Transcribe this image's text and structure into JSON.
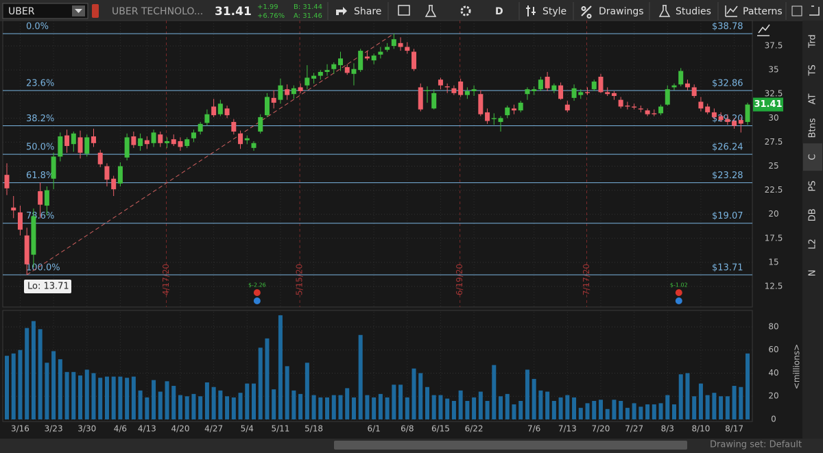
{
  "toolbar": {
    "symbol": "UBER",
    "company": "UBER TECHNOLO...",
    "last": "31.41",
    "change": "+1.99",
    "change_pct": "+6.76%",
    "bid": "B: 31.44",
    "ask": "A: 31.46",
    "share": "Share",
    "period": "D",
    "style": "Style",
    "drawings": "Drawings",
    "studies": "Studies",
    "patterns": "Patterns"
  },
  "sidebar": [
    "Trd",
    "TS",
    "AT",
    "Btns",
    "C",
    "PS",
    "DB",
    "L2",
    "N"
  ],
  "footer": {
    "drawing_set": "Drawing set: Default"
  },
  "chart_data": {
    "type": "candlestick",
    "categories": [
      null,
      null,
      "3/16",
      null,
      null,
      null,
      null,
      "3/23",
      null,
      null,
      null,
      null,
      "3/30",
      null,
      null,
      null,
      null,
      "4/6",
      null,
      null,
      null,
      "4/13",
      null,
      null,
      null,
      null,
      "4/20",
      null,
      null,
      null,
      null,
      "4/27",
      null,
      null,
      null,
      null,
      "5/4",
      null,
      null,
      null,
      null,
      "5/11",
      null,
      null,
      null,
      null,
      "5/18",
      null,
      null,
      null,
      null,
      null,
      null,
      null,
      null,
      "6/1",
      null,
      null,
      null,
      null,
      "6/8",
      null,
      null,
      null,
      null,
      "6/15",
      null,
      null,
      null,
      null,
      "6/22",
      null,
      null,
      null,
      null,
      null,
      null,
      null,
      null,
      "7/6",
      null,
      null,
      null,
      null,
      "7/13",
      null,
      null,
      null,
      null,
      "7/20",
      null,
      null,
      null,
      null,
      "7/27",
      null,
      null,
      null,
      null,
      "8/3",
      null,
      null,
      null,
      null,
      "8/10",
      null,
      null,
      null,
      null,
      "8/17",
      null,
      null
    ],
    "ohlc": [
      [
        24.1,
        25.3,
        22.0,
        22.7
      ],
      [
        20.7,
        21.9,
        19.6,
        20.4
      ],
      [
        20.2,
        20.9,
        17.8,
        18.4
      ],
      [
        17.8,
        18.6,
        13.71,
        14.8
      ],
      [
        15.8,
        20.6,
        14.5,
        19.8
      ],
      [
        22.4,
        23.3,
        19.6,
        21.0
      ],
      [
        20.9,
        22.9,
        19.9,
        22.5
      ],
      [
        23.7,
        26.4,
        22.6,
        26.0
      ],
      [
        26.0,
        28.5,
        25.5,
        28.1
      ],
      [
        28.2,
        28.8,
        26.4,
        27.1
      ],
      [
        27.3,
        28.6,
        26.5,
        28.4
      ],
      [
        28.0,
        28.7,
        25.8,
        26.4
      ],
      [
        26.3,
        28.3,
        26.0,
        28.0
      ],
      [
        28.1,
        28.9,
        27.0,
        27.4
      ],
      [
        26.4,
        26.7,
        24.9,
        25.2
      ],
      [
        25.0,
        25.3,
        22.9,
        23.6
      ],
      [
        23.7,
        24.0,
        21.9,
        22.6
      ],
      [
        23.2,
        25.4,
        22.9,
        25.0
      ],
      [
        25.9,
        28.4,
        25.6,
        28.0
      ],
      [
        28.1,
        28.6,
        26.9,
        27.2
      ],
      [
        27.1,
        28.4,
        26.6,
        27.9
      ],
      [
        27.7,
        28.1,
        26.8,
        27.3
      ],
      [
        27.4,
        28.8,
        27.0,
        28.5
      ],
      [
        28.3,
        28.6,
        27.0,
        27.4
      ],
      [
        27.4,
        28.0,
        26.9,
        27.6
      ],
      [
        27.8,
        28.3,
        27.1,
        27.3
      ],
      [
        27.6,
        28.0,
        26.6,
        27.0
      ],
      [
        27.1,
        28.0,
        26.9,
        27.8
      ],
      [
        27.9,
        28.8,
        27.5,
        28.5
      ],
      [
        28.6,
        29.6,
        28.3,
        29.4
      ],
      [
        29.5,
        30.9,
        29.2,
        30.4
      ],
      [
        31.2,
        32.0,
        30.1,
        30.3
      ],
      [
        30.4,
        31.9,
        30.2,
        31.5
      ],
      [
        31.0,
        31.3,
        30.0,
        30.3
      ],
      [
        29.6,
        29.9,
        28.3,
        28.6
      ],
      [
        28.4,
        28.7,
        26.8,
        27.3
      ],
      [
        27.7,
        28.2,
        27.3,
        27.9
      ],
      [
        26.9,
        27.6,
        26.6,
        27.4
      ],
      [
        28.6,
        30.4,
        28.4,
        30.1
      ],
      [
        30.3,
        32.6,
        30.1,
        32.2
      ],
      [
        32.1,
        32.9,
        31.0,
        31.6
      ],
      [
        31.9,
        34.1,
        31.5,
        33.4
      ],
      [
        33.0,
        33.5,
        31.9,
        32.4
      ],
      [
        32.5,
        33.4,
        32.0,
        33.1
      ],
      [
        33.2,
        33.6,
        32.6,
        32.8
      ],
      [
        33.4,
        35.5,
        33.0,
        34.2
      ],
      [
        34.1,
        34.7,
        33.6,
        34.4
      ],
      [
        34.4,
        35.0,
        34.0,
        34.8
      ],
      [
        34.8,
        35.6,
        34.4,
        35.0
      ],
      [
        35.1,
        35.8,
        34.6,
        35.6
      ],
      [
        35.5,
        36.9,
        34.9,
        36.2
      ],
      [
        35.3,
        35.6,
        34.5,
        34.7
      ],
      [
        34.6,
        35.7,
        33.4,
        35.1
      ],
      [
        35.0,
        37.2,
        34.8,
        37.0
      ],
      [
        36.4,
        37.0,
        36.0,
        36.2
      ],
      [
        36.0,
        36.7,
        35.6,
        36.5
      ],
      [
        36.6,
        37.4,
        36.2,
        36.9
      ],
      [
        37.1,
        37.8,
        36.9,
        37.4
      ],
      [
        37.5,
        38.78,
        37.2,
        38.2
      ],
      [
        37.8,
        38.4,
        37.0,
        37.4
      ],
      [
        37.4,
        37.9,
        36.7,
        37.0
      ],
      [
        36.9,
        37.2,
        34.9,
        35.1
      ],
      [
        33.2,
        33.6,
        30.7,
        30.9
      ],
      [
        32.8,
        33.3,
        31.6,
        32.9
      ],
      [
        31.0,
        33.0,
        30.9,
        32.6
      ],
      [
        34.0,
        34.2,
        33.0,
        33.4
      ],
      [
        33.3,
        33.6,
        32.6,
        33.2
      ],
      [
        33.1,
        33.4,
        32.4,
        32.6
      ],
      [
        33.8,
        34.1,
        32.2,
        32.4
      ],
      [
        32.4,
        33.2,
        32.0,
        32.8
      ],
      [
        32.8,
        33.4,
        32.3,
        33.0
      ],
      [
        32.5,
        32.9,
        30.2,
        30.4
      ],
      [
        30.6,
        31.0,
        29.4,
        29.7
      ],
      [
        29.9,
        30.5,
        29.3,
        30.0
      ],
      [
        29.6,
        30.2,
        28.6,
        30.0
      ],
      [
        30.3,
        31.3,
        30.0,
        31.1
      ],
      [
        31.0,
        31.4,
        30.4,
        30.8
      ],
      [
        30.8,
        31.8,
        30.6,
        31.6
      ],
      [
        32.5,
        33.2,
        31.9,
        33.0
      ],
      [
        32.8,
        33.3,
        32.4,
        33.0
      ],
      [
        33.0,
        34.3,
        32.8,
        34.0
      ],
      [
        34.3,
        34.8,
        32.8,
        33.1
      ],
      [
        32.9,
        33.6,
        32.6,
        33.4
      ],
      [
        33.4,
        33.7,
        31.9,
        32.0
      ],
      [
        31.4,
        31.8,
        30.6,
        30.8
      ],
      [
        32.1,
        33.5,
        31.8,
        33.1
      ],
      [
        32.4,
        33.0,
        32.0,
        32.7
      ],
      [
        32.7,
        33.2,
        32.4,
        32.6
      ],
      [
        33.0,
        34.0,
        32.8,
        33.8
      ],
      [
        34.3,
        34.6,
        32.6,
        32.7
      ],
      [
        32.7,
        33.2,
        32.3,
        32.5
      ],
      [
        32.6,
        32.8,
        31.9,
        32.3
      ],
      [
        31.9,
        32.2,
        31.0,
        31.2
      ],
      [
        31.3,
        31.7,
        30.9,
        31.2
      ],
      [
        31.2,
        31.5,
        30.9,
        31.1
      ],
      [
        31.0,
        31.3,
        30.6,
        30.9
      ],
      [
        30.8,
        31.0,
        30.2,
        30.4
      ],
      [
        30.5,
        30.9,
        30.2,
        30.4
      ],
      [
        30.5,
        31.4,
        30.3,
        31.2
      ],
      [
        31.4,
        33.4,
        31.3,
        33.0
      ],
      [
        33.2,
        33.6,
        32.9,
        33.4
      ],
      [
        33.5,
        35.2,
        33.3,
        34.9
      ],
      [
        33.6,
        34.0,
        32.9,
        33.2
      ],
      [
        33.2,
        33.5,
        32.1,
        32.3
      ],
      [
        31.7,
        32.2,
        30.7,
        31.0
      ],
      [
        31.2,
        31.5,
        30.4,
        30.6
      ],
      [
        30.6,
        31.0,
        29.9,
        30.1
      ],
      [
        30.2,
        30.6,
        29.6,
        29.8
      ],
      [
        29.9,
        30.4,
        29.3,
        29.6
      ],
      [
        29.7,
        30.0,
        28.9,
        29.2
      ],
      [
        29.8,
        30.1,
        28.5,
        29.42
      ],
      [
        29.6,
        31.6,
        29.3,
        31.41
      ]
    ],
    "up_color": "#3fbf3f",
    "down_color": "#f0606a",
    "ylim": [
      10.36,
      40.14
    ],
    "yticks": [
      12.5,
      15,
      17.5,
      20,
      22.5,
      25,
      27.5,
      30,
      32.5,
      35,
      37.5
    ],
    "grid": true,
    "low_label": "Lo: 13.71",
    "fib_color": "#7ab4e0",
    "fib_levels": [
      {
        "level": "0.0%",
        "price": 38.78,
        "price_label": "$38.78"
      },
      {
        "level": "23.6%",
        "price": 32.86,
        "price_label": "$32.86"
      },
      {
        "level": "38.2%",
        "price": 29.2,
        "price_label": "$29.20"
      },
      {
        "level": "50.0%",
        "price": 26.24,
        "price_label": "$26.24"
      },
      {
        "level": "61.8%",
        "price": 23.28,
        "price_label": "$23.28"
      },
      {
        "level": "78.6%",
        "price": 19.07,
        "price_label": "$19.07"
      },
      {
        "level": "100.0%",
        "price": 13.71,
        "price_label": "$13.71"
      }
    ],
    "date_markers": [
      "4/17/20",
      "5/15/20",
      "6/19/20",
      "7/17/20"
    ],
    "earnings": [
      "$-2.26",
      "$-1.02"
    ],
    "volume": {
      "values": [
        55,
        57,
        60,
        79,
        85,
        78,
        49,
        59,
        52,
        41,
        41,
        38,
        43,
        40,
        36,
        37,
        37,
        37,
        36,
        37,
        25,
        19,
        34,
        24,
        33,
        29,
        21,
        20,
        22,
        20,
        32,
        28,
        25,
        20,
        19,
        23,
        31,
        31,
        62,
        70,
        26,
        90,
        46,
        25,
        22,
        49,
        21,
        19,
        19,
        21,
        21,
        27,
        19,
        73,
        21,
        19,
        22,
        19,
        30,
        30,
        19,
        44,
        40,
        28,
        21,
        21,
        18,
        16,
        25,
        16,
        19,
        24,
        16,
        47,
        20,
        22,
        13,
        16,
        43,
        35,
        25,
        24,
        16,
        19,
        21,
        19,
        10,
        14,
        16,
        17,
        9,
        17,
        16,
        10,
        14,
        11,
        13,
        13,
        14,
        21,
        13,
        39,
        40,
        20,
        31,
        21,
        23,
        20,
        20,
        29,
        28,
        57
      ],
      "color": "#1d6a9e",
      "ylim": [
        0,
        93
      ],
      "yticks": [
        0,
        20,
        40,
        60,
        80
      ],
      "unit_label": "<millions>"
    }
  }
}
